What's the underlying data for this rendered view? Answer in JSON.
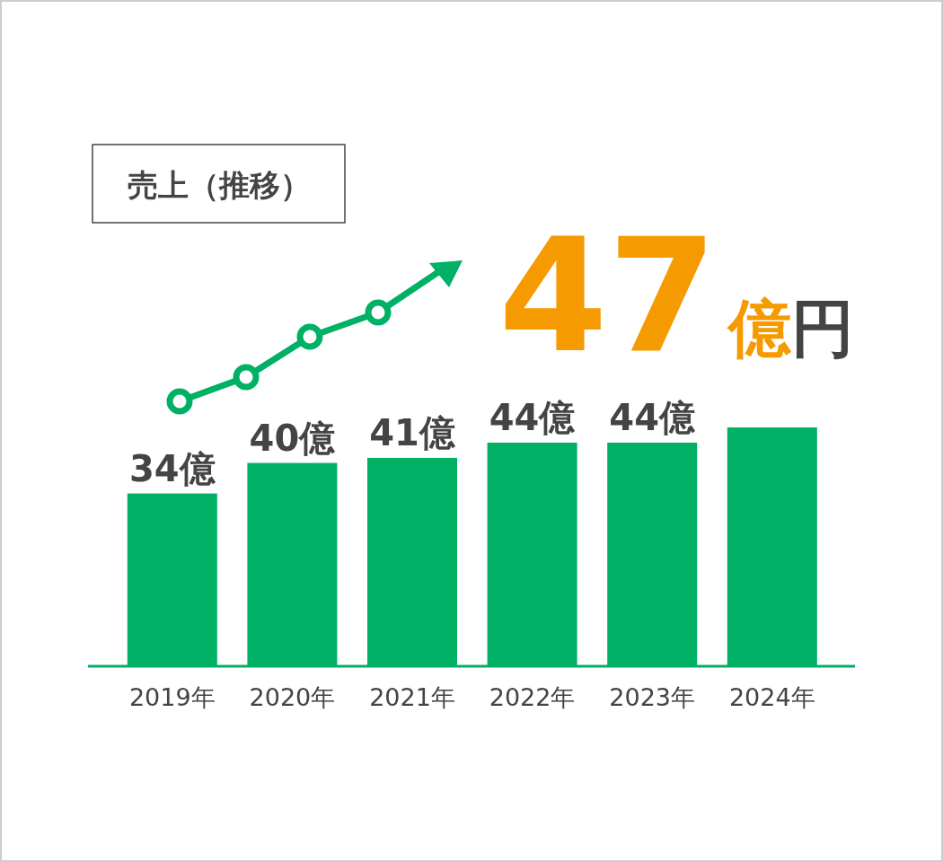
{
  "chart_data": {
    "type": "bar",
    "title": "売上（推移）",
    "categories": [
      "2019年",
      "2020年",
      "2021年",
      "2022年",
      "2023年",
      "2024年"
    ],
    "values": [
      34,
      40,
      41,
      44,
      44,
      47
    ],
    "color": "#00b065",
    "value_labels": [
      "34億",
      "40億",
      "41億",
      "44億",
      "44億",
      null
    ],
    "annotations": [
      "47億円"
    ]
  }
}
